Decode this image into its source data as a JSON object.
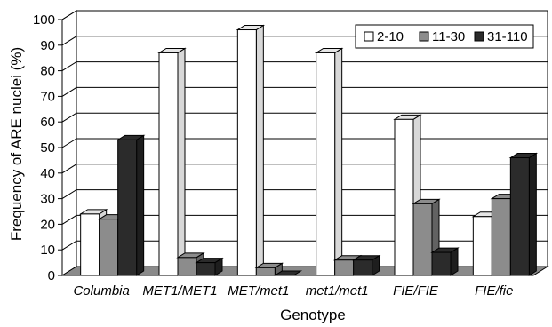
{
  "chart_data": {
    "type": "bar",
    "title": "",
    "xlabel": "Genotype",
    "ylabel": "Frequency of ARE nuclei (%)",
    "ylim": [
      0,
      100
    ],
    "yticks": [
      0,
      10,
      20,
      30,
      40,
      50,
      60,
      70,
      80,
      90,
      100
    ],
    "categories": [
      "Columbia",
      "MET1/MET1",
      "MET/met1",
      "met1/met1",
      "FIE/FIE",
      "FIE/fie"
    ],
    "series": [
      {
        "name": "2-10",
        "color": "#ffffff",
        "values": [
          24,
          87,
          96,
          87,
          61,
          23
        ]
      },
      {
        "name": "11-30",
        "color": "#8c8c8c",
        "values": [
          22,
          7,
          3,
          6,
          28,
          30
        ]
      },
      {
        "name": "31-110",
        "color": "#2b2b2b",
        "values": [
          53,
          5,
          0,
          6,
          9,
          46
        ]
      }
    ],
    "grid": true,
    "legend_position": "top-right",
    "style": "3d"
  }
}
